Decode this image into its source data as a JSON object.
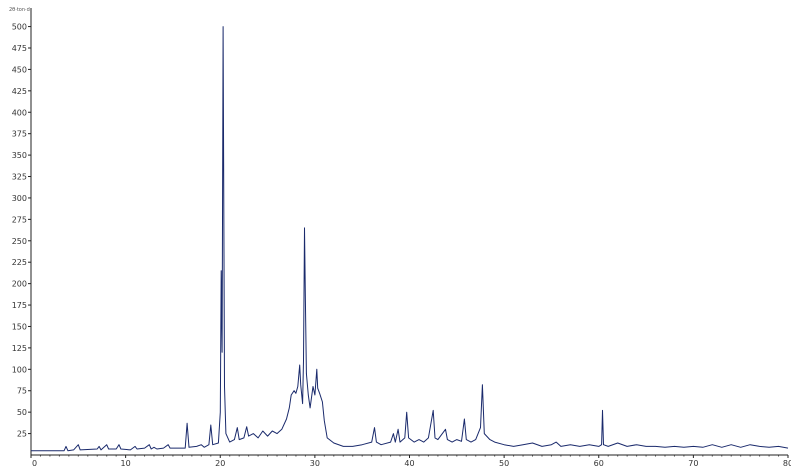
{
  "chart_data": {
    "type": "line",
    "y_unit": "2θ·ton·d",
    "xlim": [
      0,
      80
    ],
    "ylim": [
      0,
      510
    ],
    "x_ticks": [
      0,
      10,
      20,
      30,
      40,
      50,
      60,
      70,
      80
    ],
    "y_ticks": [
      25,
      50,
      75,
      100,
      125,
      150,
      175,
      200,
      225,
      250,
      275,
      300,
      325,
      350,
      375,
      400,
      425,
      450,
      475,
      500
    ],
    "grid": false,
    "series": [
      {
        "color": "#1a2a6c",
        "points": [
          [
            0,
            5
          ],
          [
            3.5,
            5
          ],
          [
            3.7,
            10
          ],
          [
            3.9,
            5
          ],
          [
            4.5,
            6
          ],
          [
            5.0,
            12
          ],
          [
            5.2,
            6
          ],
          [
            7.0,
            7
          ],
          [
            7.2,
            10
          ],
          [
            7.4,
            6
          ],
          [
            8.0,
            12
          ],
          [
            8.2,
            7
          ],
          [
            9.0,
            7
          ],
          [
            9.3,
            12
          ],
          [
            9.5,
            7
          ],
          [
            10.5,
            6
          ],
          [
            11.0,
            10
          ],
          [
            11.2,
            7
          ],
          [
            12.0,
            8
          ],
          [
            12.5,
            12
          ],
          [
            12.7,
            7
          ],
          [
            13.0,
            9
          ],
          [
            13.3,
            7
          ],
          [
            14.0,
            8
          ],
          [
            14.5,
            12
          ],
          [
            14.7,
            8
          ],
          [
            16.3,
            8
          ],
          [
            16.5,
            37
          ],
          [
            16.7,
            9
          ],
          [
            17.5,
            10
          ],
          [
            18.0,
            12
          ],
          [
            18.3,
            9
          ],
          [
            18.8,
            12
          ],
          [
            19.0,
            35
          ],
          [
            19.2,
            12
          ],
          [
            19.8,
            14
          ],
          [
            20.0,
            50
          ],
          [
            20.1,
            215
          ],
          [
            20.2,
            120
          ],
          [
            20.3,
            500
          ],
          [
            20.45,
            80
          ],
          [
            20.6,
            25
          ],
          [
            21.0,
            15
          ],
          [
            21.5,
            18
          ],
          [
            21.8,
            32
          ],
          [
            22.0,
            18
          ],
          [
            22.5,
            20
          ],
          [
            22.8,
            33
          ],
          [
            23.0,
            22
          ],
          [
            23.5,
            25
          ],
          [
            24.0,
            20
          ],
          [
            24.5,
            28
          ],
          [
            25.0,
            22
          ],
          [
            25.5,
            28
          ],
          [
            26.0,
            25
          ],
          [
            26.5,
            30
          ],
          [
            27.0,
            42
          ],
          [
            27.3,
            55
          ],
          [
            27.5,
            70
          ],
          [
            27.8,
            75
          ],
          [
            28.0,
            72
          ],
          [
            28.2,
            80
          ],
          [
            28.4,
            105
          ],
          [
            28.5,
            82
          ],
          [
            28.7,
            60
          ],
          [
            28.8,
            110
          ],
          [
            28.9,
            265
          ],
          [
            29.0,
            180
          ],
          [
            29.1,
            95
          ],
          [
            29.3,
            70
          ],
          [
            29.5,
            55
          ],
          [
            29.8,
            80
          ],
          [
            30.0,
            70
          ],
          [
            30.2,
            100
          ],
          [
            30.3,
            78
          ],
          [
            30.5,
            72
          ],
          [
            30.8,
            62
          ],
          [
            31.0,
            40
          ],
          [
            31.3,
            20
          ],
          [
            32.0,
            14
          ],
          [
            33.0,
            10
          ],
          [
            34.0,
            10
          ],
          [
            35.0,
            12
          ],
          [
            36.0,
            15
          ],
          [
            36.3,
            32
          ],
          [
            36.5,
            15
          ],
          [
            37.0,
            12
          ],
          [
            38.0,
            15
          ],
          [
            38.3,
            25
          ],
          [
            38.5,
            15
          ],
          [
            38.8,
            30
          ],
          [
            39.0,
            15
          ],
          [
            39.5,
            20
          ],
          [
            39.7,
            50
          ],
          [
            39.9,
            20
          ],
          [
            40.5,
            15
          ],
          [
            41.0,
            18
          ],
          [
            41.5,
            15
          ],
          [
            42.0,
            20
          ],
          [
            42.5,
            52
          ],
          [
            42.7,
            20
          ],
          [
            43.0,
            18
          ],
          [
            43.8,
            30
          ],
          [
            44.0,
            18
          ],
          [
            44.5,
            15
          ],
          [
            45.0,
            18
          ],
          [
            45.5,
            16
          ],
          [
            45.8,
            42
          ],
          [
            46.0,
            18
          ],
          [
            46.5,
            15
          ],
          [
            47.0,
            18
          ],
          [
            47.5,
            32
          ],
          [
            47.7,
            82
          ],
          [
            47.9,
            25
          ],
          [
            48.5,
            18
          ],
          [
            49.0,
            15
          ],
          [
            50.0,
            12
          ],
          [
            51.0,
            10
          ],
          [
            52.0,
            12
          ],
          [
            53.0,
            14
          ],
          [
            54.0,
            10
          ],
          [
            55.0,
            12
          ],
          [
            55.5,
            15
          ],
          [
            56.0,
            10
          ],
          [
            57.0,
            12
          ],
          [
            58.0,
            10
          ],
          [
            59.0,
            12
          ],
          [
            60.0,
            10
          ],
          [
            60.3,
            12
          ],
          [
            60.4,
            52
          ],
          [
            60.5,
            12
          ],
          [
            61.0,
            10
          ],
          [
            62.0,
            14
          ],
          [
            63.0,
            10
          ],
          [
            64.0,
            12
          ],
          [
            65.0,
            10
          ],
          [
            66.0,
            10
          ],
          [
            67.0,
            9
          ],
          [
            68.0,
            10
          ],
          [
            69.0,
            9
          ],
          [
            70.0,
            10
          ],
          [
            71.0,
            9
          ],
          [
            72.0,
            12
          ],
          [
            73.0,
            9
          ],
          [
            74.0,
            12
          ],
          [
            75.0,
            9
          ],
          [
            76.0,
            12
          ],
          [
            77.0,
            10
          ],
          [
            78.0,
            9
          ],
          [
            79.0,
            10
          ],
          [
            80.0,
            8
          ]
        ]
      }
    ]
  }
}
